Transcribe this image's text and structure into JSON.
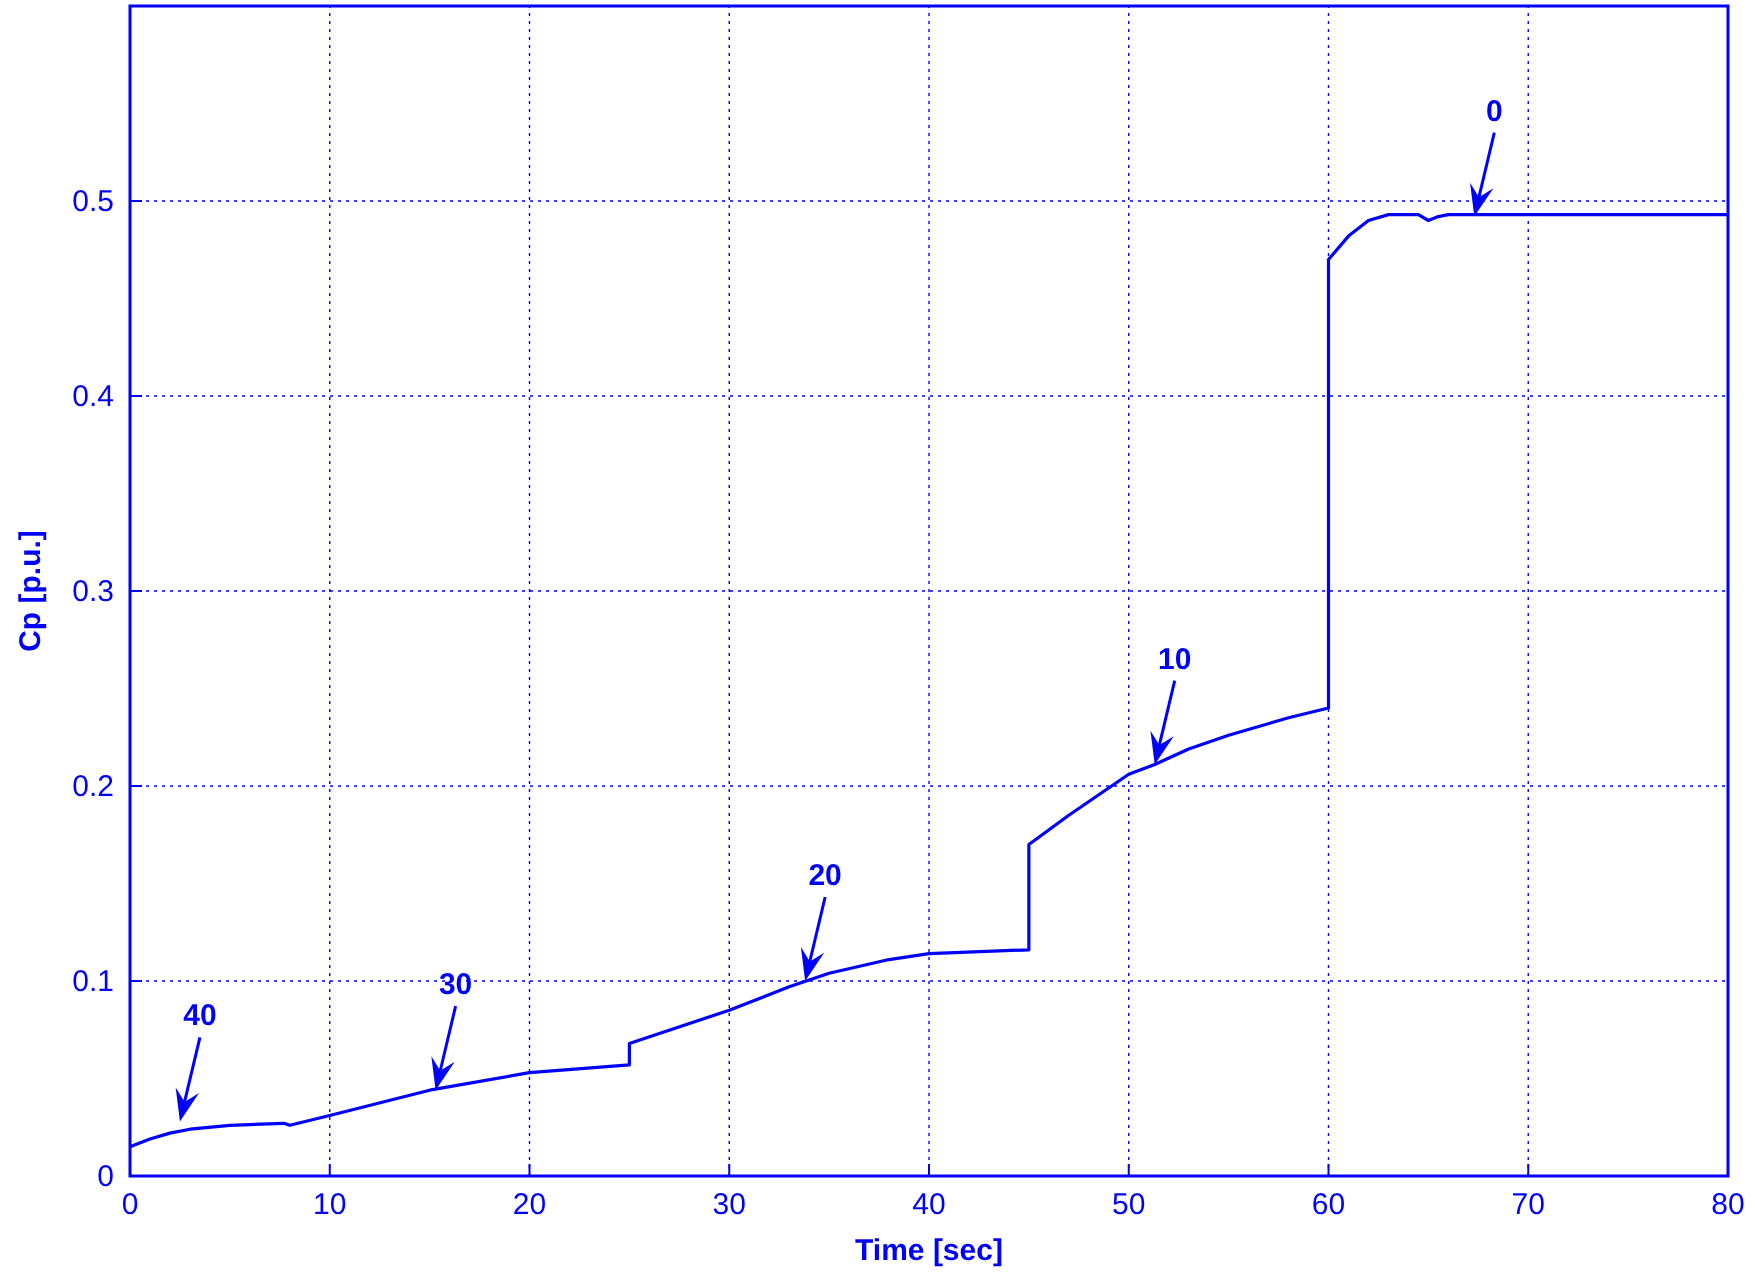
{
  "chart_data": {
    "type": "line",
    "xlabel": "Time [sec]",
    "ylabel": "Cp [p.u.]",
    "xlim": [
      0,
      80
    ],
    "ylim": [
      0,
      0.6
    ],
    "xticks": [
      0,
      10,
      20,
      30,
      40,
      50,
      60,
      70,
      80
    ],
    "yticks": [
      0,
      0.1,
      0.2,
      0.3,
      0.4,
      0.5
    ],
    "grid": true,
    "line_style": "solid",
    "series": [
      {
        "color": "#0000ff",
        "x": [
          0,
          1,
          2,
          3,
          5,
          7.7,
          8,
          10,
          15,
          20,
          25,
          25,
          30,
          33,
          35,
          38,
          40,
          45,
          45,
          47,
          50,
          51.3,
          53,
          55,
          58,
          60,
          60,
          60,
          61,
          62,
          63,
          64.5,
          65,
          65.5,
          66,
          80
        ],
        "values": [
          0.015,
          0.019,
          0.022,
          0.024,
          0.026,
          0.027,
          0.026,
          0.031,
          0.044,
          0.053,
          0.057,
          0.068,
          0.085,
          0.097,
          0.104,
          0.111,
          0.114,
          0.116,
          0.17,
          0.185,
          0.206,
          0.211,
          0.219,
          0.226,
          0.235,
          0.24,
          0.39,
          0.47,
          0.482,
          0.49,
          0.493,
          0.493,
          0.49,
          0.492,
          0.493,
          0.493
        ]
      }
    ],
    "annotations": [
      {
        "text": "40",
        "x": 2.5,
        "y": 0.028
      },
      {
        "text": "30",
        "x": 15.3,
        "y": 0.044
      },
      {
        "text": "20",
        "x": 33.8,
        "y": 0.1
      },
      {
        "text": "10",
        "x": 51.3,
        "y": 0.211
      },
      {
        "text": "0",
        "x": 67.3,
        "y": 0.492
      }
    ]
  }
}
